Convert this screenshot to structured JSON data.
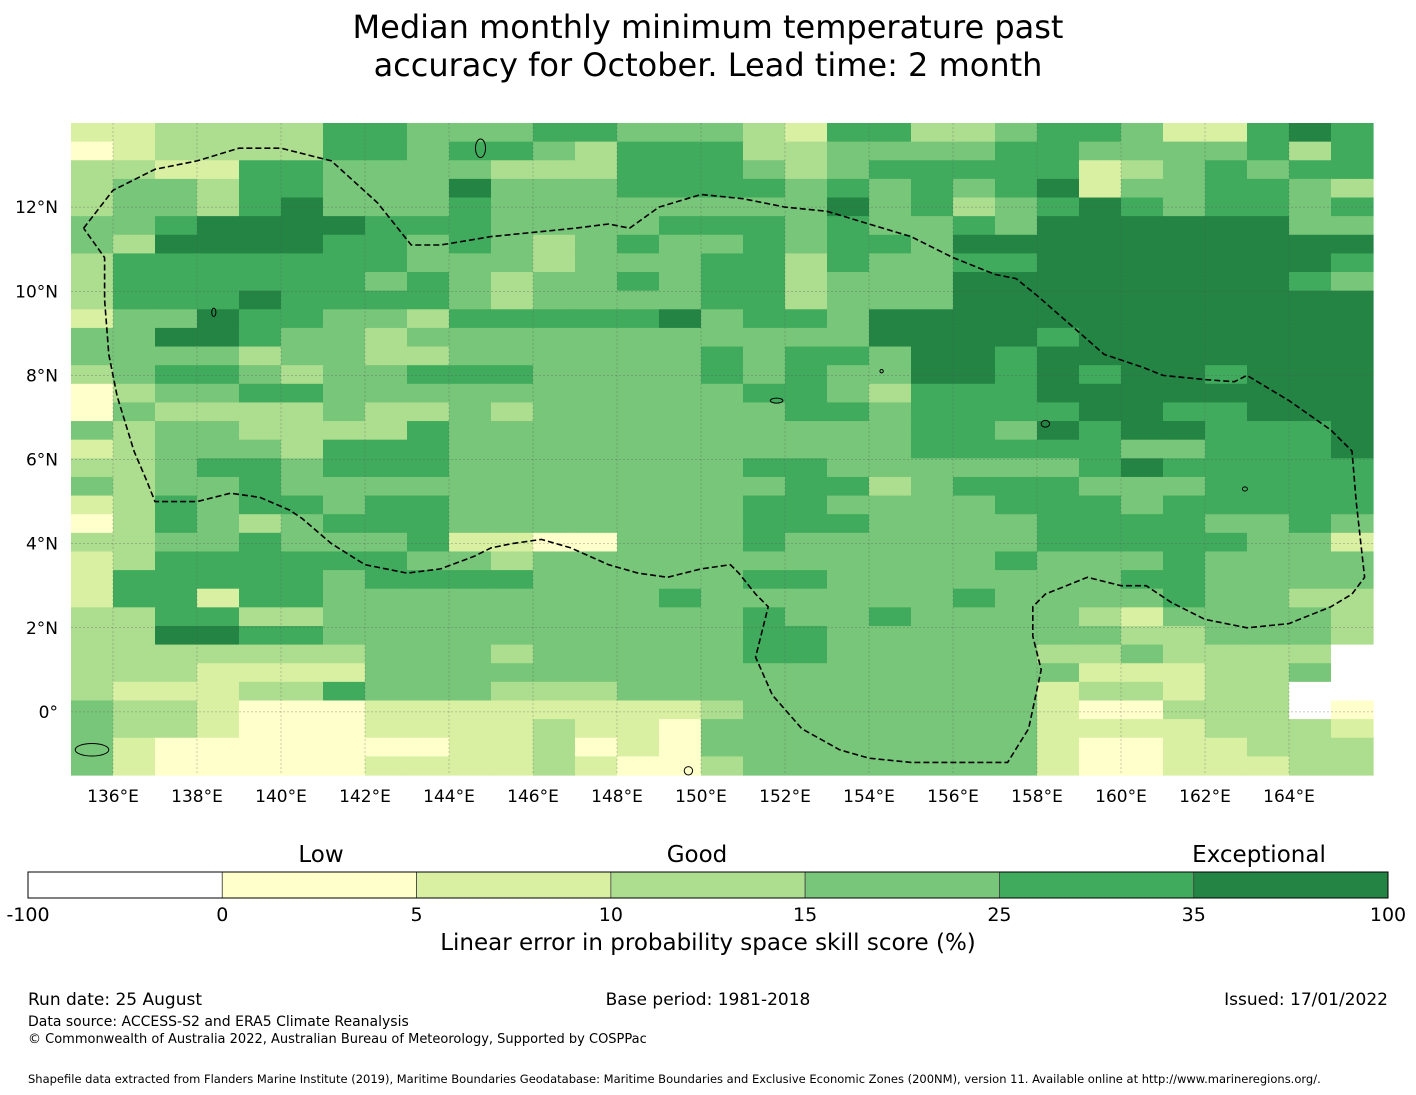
{
  "title_line1": "Median monthly minimum temperature past",
  "title_line2": "accuracy for October. Lead time: 2 month",
  "map": {
    "lon_range": [
      135,
      166
    ],
    "lat_range": [
      -1.5,
      14
    ],
    "cell_size_deg": 0.833,
    "lon_ticks": [
      "136°E",
      "138°E",
      "140°E",
      "142°E",
      "144°E",
      "146°E",
      "148°E",
      "150°E",
      "152°E",
      "154°E",
      "156°E",
      "158°E",
      "160°E",
      "162°E",
      "164°E"
    ],
    "lat_ticks": [
      "12°N",
      "10°N",
      "8°N",
      "6°N",
      "4°N",
      "2°N",
      "0°"
    ],
    "grid_rows": [
      "3344446655566555436644566533676",
      "2344446656654666445555665555646",
      "4433665555444666545666663456566",
      "4554665557555666656565673556654",
      "4554675556555555557564567656656",
      "5567777666555566656556577777755",
      "5477776656545655656657777777777",
      "4666666655545556646556677777776",
      "4666666565455656645557777777765",
      "4666766665455556645557777777777",
      "3557665546666675665777777777777",
      "5577655455555555555777767777777",
      "5555455445555556566577677777777",
      "4566545566655556565577676776777",
      "2455665555555555665466677777777",
      "2544445445455555566566667766777",
      "5455444465555555555566576776667",
      "3455546665555555555566666556667",
      "4456656665555555665555556766666",
      "5455655555555555566456665556666",
      "3465665665555555665555666566666",
      "2465456665555555666555566665565",
      "4455655563322555655555566666553",
      "3466666655455555555555655565555",
      "3666665666655555665555555665555",
      "3663665555555565555556555565544",
      "4466445555555555655655554355554",
      "4477665555555555665555555445554",
      "4444444555455555665555544544440",
      "4443333555555555555555553334450",
      "4333446555444555555555534434400",
      "5443211333333334555555532244401",
      "5443211333343315555555533334443",
      "5322211223342315555555532233444",
      "5322111333343114555555532233344"
    ],
    "colors": {
      "0": "#ffffff",
      "1": "#ffffcc",
      "2": "#ffffcc",
      "3": "#d9f0a3",
      "4": "#addd8e",
      "5": "#78c679",
      "6": "#41ab5d",
      "7": "#238443"
    },
    "eez_boundary": [
      [
        135.3,
        11.5
      ],
      [
        136,
        12.4
      ],
      [
        137,
        12.9
      ],
      [
        138,
        13.1
      ],
      [
        139,
        13.4
      ],
      [
        140,
        13.4
      ],
      [
        141.2,
        13.1
      ],
      [
        142.3,
        12.1
      ],
      [
        143.1,
        11.1
      ],
      [
        143.8,
        11.1
      ],
      [
        145,
        11.3
      ],
      [
        146,
        11.4
      ],
      [
        147,
        11.5
      ],
      [
        147.8,
        11.6
      ],
      [
        148.3,
        11.5
      ],
      [
        149,
        12
      ],
      [
        150,
        12.3
      ],
      [
        151,
        12.2
      ],
      [
        152,
        12
      ],
      [
        153,
        11.9
      ],
      [
        154,
        11.6
      ],
      [
        155,
        11.3
      ],
      [
        156,
        10.8
      ],
      [
        157,
        10.4
      ],
      [
        157.5,
        10.3
      ],
      [
        158,
        9.9
      ],
      [
        158.8,
        9.2
      ],
      [
        159.6,
        8.5
      ],
      [
        160.5,
        8.2
      ],
      [
        161,
        8
      ],
      [
        162,
        7.9
      ],
      [
        162.7,
        7.85
      ],
      [
        163,
        8
      ],
      [
        164,
        7.4
      ],
      [
        165,
        6.7
      ],
      [
        165.5,
        6.2
      ],
      [
        165.6,
        5
      ],
      [
        165.8,
        3.2
      ],
      [
        165.5,
        2.8
      ],
      [
        165,
        2.5
      ],
      [
        164,
        2.1
      ],
      [
        163,
        2
      ],
      [
        162,
        2.2
      ],
      [
        161.2,
        2.6
      ],
      [
        160.6,
        3
      ],
      [
        160,
        3
      ],
      [
        159.2,
        3.2
      ],
      [
        158.2,
        2.8
      ],
      [
        157.9,
        2.5
      ],
      [
        157.9,
        1.8
      ],
      [
        158.1,
        1
      ],
      [
        157.8,
        -0.4
      ],
      [
        157.3,
        -1.2
      ],
      [
        156,
        -1.2
      ],
      [
        155,
        -1.2
      ],
      [
        154,
        -1.1
      ],
      [
        153.3,
        -0.9
      ],
      [
        152.4,
        -0.4
      ],
      [
        151.7,
        0.4
      ],
      [
        151.3,
        1.3
      ],
      [
        151.6,
        2.5
      ],
      [
        151.3,
        2.8
      ],
      [
        150.9,
        3.3
      ],
      [
        150.7,
        3.5
      ],
      [
        150,
        3.4
      ],
      [
        149.2,
        3.2
      ],
      [
        148.5,
        3.3
      ],
      [
        147.8,
        3.5
      ],
      [
        146.9,
        3.9
      ],
      [
        146.2,
        4.1
      ],
      [
        145.5,
        4
      ],
      [
        145,
        3.9
      ],
      [
        144.6,
        3.7
      ],
      [
        143.8,
        3.4
      ],
      [
        143,
        3.3
      ],
      [
        142,
        3.5
      ],
      [
        141.2,
        4
      ],
      [
        140.5,
        4.6
      ],
      [
        140.2,
        4.8
      ],
      [
        139.5,
        5.1
      ],
      [
        138.8,
        5.2
      ],
      [
        138,
        5
      ],
      [
        137,
        5
      ],
      [
        136.8,
        5.5
      ],
      [
        136.5,
        6.2
      ],
      [
        136.1,
        7.5
      ],
      [
        135.9,
        8.5
      ],
      [
        135.8,
        9.8
      ],
      [
        135.8,
        10.8
      ],
      [
        135.3,
        11.5
      ]
    ]
  },
  "colorbar": {
    "categories": [
      "Low",
      "Good",
      "Exceptional"
    ],
    "ticks": [
      "-100",
      "0",
      "5",
      "10",
      "15",
      "25",
      "35",
      "100"
    ],
    "colors": [
      "#ffffff",
      "#ffffcc",
      "#d9f0a3",
      "#addd8e",
      "#78c679",
      "#41ab5d",
      "#238443"
    ],
    "label": "Linear error in probability space skill score (%)"
  },
  "footer": {
    "run_date": "Run date: 25 August",
    "base_period": "Base period: 1981-2018",
    "issued": "Issued: 17/01/2022",
    "data_source": "Data source: ACCESS-S2 and ERA5 Climate Reanalysis",
    "copyright": "© Commonwealth of Australia 2022, Australian Bureau of Meteorology, Supported by COSPPac",
    "shapefile": "Shapefile data extracted from Flanders Marine Institute (2019), Maritime Boundaries Geodatabase: Maritime Boundaries and Exclusive Economic Zones (200NM), version 11. Available online at http://www.marineregions.org/."
  }
}
